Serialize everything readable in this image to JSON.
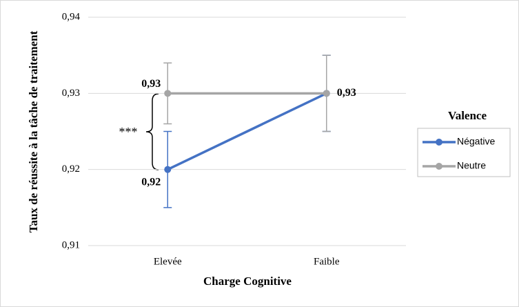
{
  "chart_data": {
    "type": "line",
    "x_label": "Charge Cognitive",
    "y_label": "Taux de réussite à la tâche de traitement",
    "categories": [
      "Elevée",
      "Faible"
    ],
    "series": [
      {
        "name": "Négative",
        "color": "#4472c4",
        "values": [
          0.92,
          0.93
        ],
        "errors": [
          0.005,
          0.005
        ],
        "value_labels": [
          "0,92",
          null
        ]
      },
      {
        "name": "Neutre",
        "color": "#a5a5a5",
        "values": [
          0.93,
          0.93
        ],
        "errors": [
          0.004,
          0.005
        ],
        "value_labels": [
          "0,93",
          "0,93"
        ]
      }
    ],
    "ylim": [
      0.91,
      0.94
    ],
    "yticks": [
      {
        "value": 0.91,
        "label": "0,91"
      },
      {
        "value": 0.92,
        "label": "0,92"
      },
      {
        "value": 0.93,
        "label": "0,93"
      },
      {
        "value": 0.94,
        "label": "0,94"
      }
    ],
    "grid": true,
    "legend_title": "Valence",
    "legend": "right",
    "annotation": "***"
  }
}
